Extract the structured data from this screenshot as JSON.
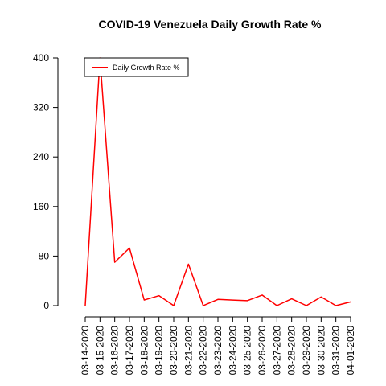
{
  "chart_data": {
    "type": "line",
    "title": "COVID-19 Venezuela Daily Growth Rate %",
    "xlabel": "",
    "ylabel": "",
    "x": [
      "03-14-2020",
      "03-15-2020",
      "03-16-2020",
      "03-17-2020",
      "03-18-2020",
      "03-19-2020",
      "03-20-2020",
      "03-21-2020",
      "03-22-2020",
      "03-23-2020",
      "03-24-2020",
      "03-25-2020",
      "03-26-2020",
      "03-27-2020",
      "03-28-2020",
      "03-29-2020",
      "03-30-2020",
      "03-31-2020",
      "04-01-2020"
    ],
    "series": [
      {
        "name": "Daily Growth Rate %",
        "color": "#ff0000",
        "values": [
          0,
          400,
          70,
          93,
          9,
          16,
          0,
          67,
          0,
          10,
          9,
          8,
          17,
          0,
          11,
          0,
          14,
          0,
          6
        ]
      }
    ],
    "ylim": [
      0,
      400
    ],
    "yticks": [
      0,
      80,
      160,
      240,
      320,
      400
    ],
    "grid": false,
    "legend": "top-left"
  }
}
